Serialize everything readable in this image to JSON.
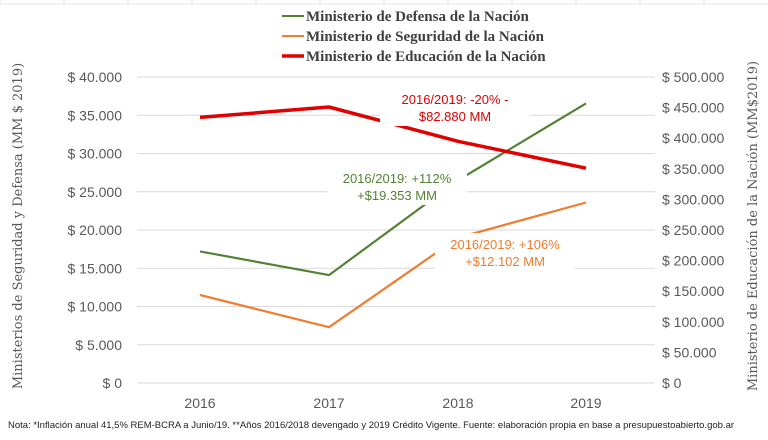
{
  "chart_data": {
    "type": "line",
    "categories": [
      "2016",
      "2017",
      "2018",
      "2019"
    ],
    "series": [
      {
        "name": "Ministerio de Defensa de la Nación",
        "axis": "left",
        "color": "#548235",
        "values": [
          17200,
          14100,
          26500,
          36550
        ]
      },
      {
        "name": "Ministerio de Seguridad de la Nación",
        "axis": "left",
        "color": "#ED7D31",
        "values": [
          11500,
          7300,
          19000,
          23600
        ]
      },
      {
        "name": "Ministerio de Educación de la Nación",
        "axis": "right",
        "color": "#E00000",
        "values": [
          434000,
          451000,
          395000,
          351000
        ]
      }
    ],
    "y_left": {
      "label": "Ministerios de Seguridad y Defensa (MM $ 2019)",
      "range": [
        0,
        40000
      ],
      "ticks": [
        "$ 0",
        "$ 5.000",
        "$ 10.000",
        "$ 15.000",
        "$ 20.000",
        "$ 25.000",
        "$ 30.000",
        "$ 35.000",
        "$ 40.000"
      ]
    },
    "y_right": {
      "label": "Ministerio de Educación de la Nación (MM$2019)",
      "range": [
        0,
        500000
      ],
      "ticks": [
        "$ 0",
        "$ 50.000",
        "$ 100.000",
        "$ 150.000",
        "$ 200.000",
        "$ 250.000",
        "$ 300.000",
        "$ 350.000",
        "$ 400.000",
        "$ 450.000",
        "$ 500.000"
      ]
    },
    "grid": true,
    "legend": "top",
    "annotations": [
      {
        "series": 2,
        "lines": [
          "2016/2019: -20% -",
          "$82.880 MM"
        ]
      },
      {
        "series": 0,
        "lines": [
          "2016/2019: +112%",
          "+$19.353 MM"
        ]
      },
      {
        "series": 1,
        "lines": [
          "2016/2019: +106%",
          "+$12.102 MM"
        ]
      }
    ],
    "note": "Nota: *Inflación anual 41,5% REM-BCRA a Junio/19. **Años 2016/2018 devengado y 2019 Crédito Vigente. Fuente: elaboración propia en base a presupuestoabierto.gob.ar"
  }
}
